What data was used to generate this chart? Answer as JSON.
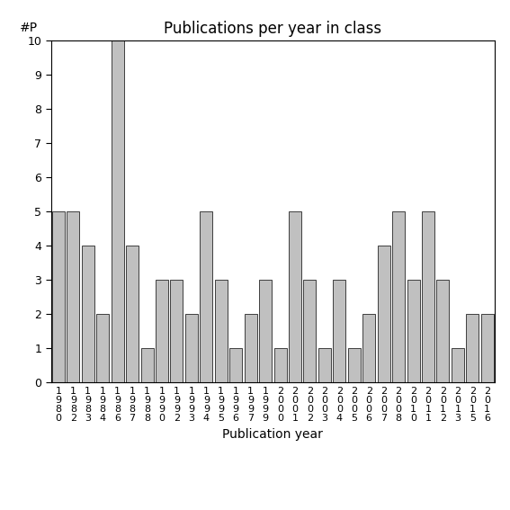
{
  "years": [
    1980,
    1982,
    1983,
    1984,
    1986,
    1987,
    1988,
    1990,
    1992,
    1993,
    1994,
    1995,
    1996,
    1997,
    1999,
    2000,
    2001,
    2002,
    2003,
    2004,
    2005,
    2006,
    2007,
    2008,
    2010,
    2011,
    2012,
    2013,
    2015,
    2016
  ],
  "values": [
    5,
    5,
    4,
    2,
    10,
    4,
    1,
    3,
    3,
    2,
    5,
    3,
    1,
    2,
    3,
    1,
    5,
    3,
    1,
    3,
    1,
    2,
    4,
    5,
    3,
    5,
    3,
    1,
    2,
    2
  ],
  "bar_color": "#c0c0c0",
  "bar_edgecolor": "#000000",
  "title": "Publications per year in class",
  "xlabel": "Publication year",
  "ylabel": "#P",
  "ylim": [
    0,
    10
  ],
  "yticks": [
    0,
    1,
    2,
    3,
    4,
    5,
    6,
    7,
    8,
    9,
    10
  ],
  "title_fontsize": 12,
  "label_fontsize": 10,
  "tick_fontsize": 9,
  "background_color": "#ffffff"
}
